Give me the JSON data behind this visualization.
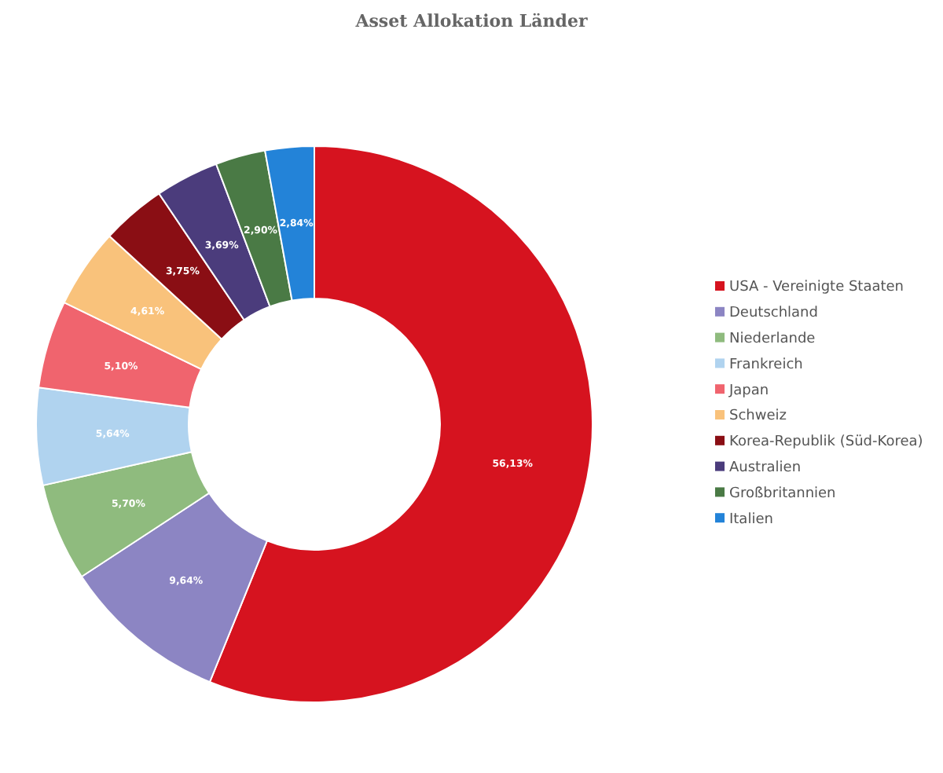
{
  "chart_data": {
    "type": "donut",
    "title": "Asset Allokation Länder",
    "categories": [
      "USA - Vereinigte Staaten",
      "Deutschland",
      "Niederlande",
      "Frankreich",
      "Japan",
      "Schweiz",
      "Korea-Republik (Süd-Korea)",
      "Australien",
      "Großbritannien",
      "Italien"
    ],
    "values": [
      56.13,
      9.64,
      5.7,
      5.64,
      5.1,
      4.61,
      3.75,
      3.69,
      2.9,
      2.84
    ],
    "value_labels": [
      "56,13%",
      "9,64%",
      "5,70%",
      "5,64%",
      "5,10%",
      "4,61%",
      "3,75%",
      "3,69%",
      "2,90%",
      "2,84%"
    ],
    "colors": [
      "#d6131f",
      "#8c85c3",
      "#8fbb7e",
      "#b0d3ef",
      "#f0646e",
      "#f9c27b",
      "#8a0e14",
      "#4b3c7c",
      "#4a7a45",
      "#2383d8"
    ],
    "legend": "right"
  }
}
